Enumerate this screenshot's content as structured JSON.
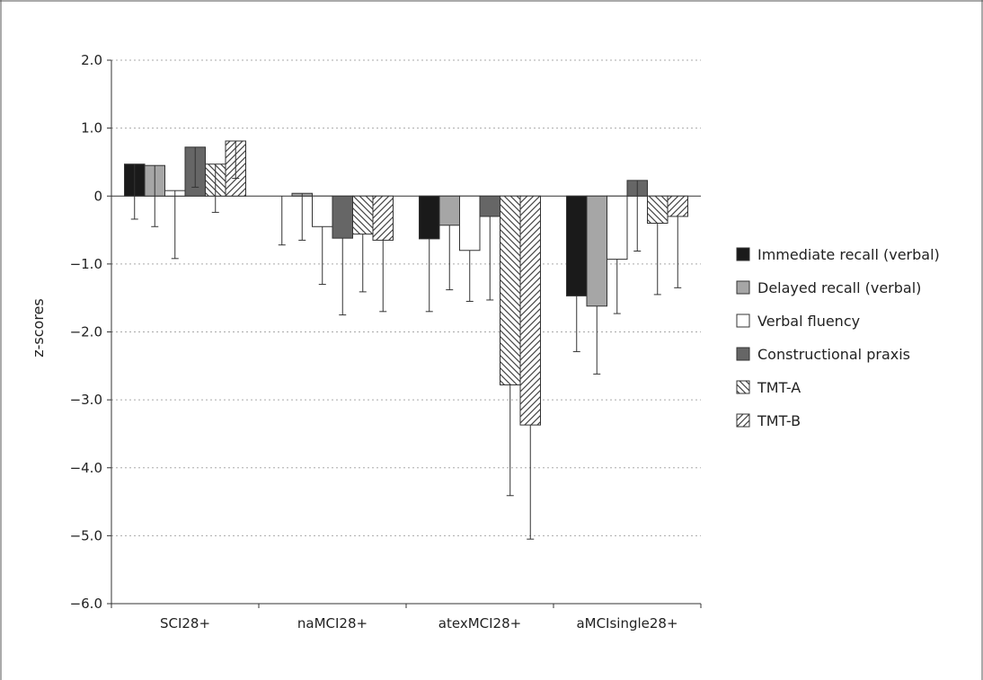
{
  "chart_data": {
    "type": "bar",
    "title": "",
    "xlabel": "",
    "ylabel": "z-scores",
    "ylim": [
      -6,
      2
    ],
    "yticks": [
      2,
      1,
      0,
      -1,
      -2,
      -3,
      -4,
      -5,
      -6
    ],
    "ytick_labels": [
      "2.0",
      "1.0",
      "0",
      "−1.0",
      "−2.0",
      "−3.0",
      "−4.0",
      "−5.0",
      "−6.0"
    ],
    "grid": "horizontal dotted",
    "legend_position": "right",
    "categories": [
      "SCI28+",
      "naMCI28+",
      "atexMCI28+",
      "aMCIsingle28+"
    ],
    "series": [
      {
        "name": "Immediate recall (verbal)",
        "fill": "#1a1a1a",
        "pattern": "solid",
        "values": [
          0.47,
          0.0,
          -0.63,
          -1.47
        ],
        "errors": [
          0.81,
          0.72,
          1.07,
          0.82
        ]
      },
      {
        "name": "Delayed recall (verbal)",
        "fill": "#a6a6a6",
        "pattern": "solid",
        "values": [
          0.45,
          0.04,
          -0.43,
          -1.62
        ],
        "errors": [
          0.9,
          0.69,
          0.95,
          1.0
        ]
      },
      {
        "name": "Verbal fluency",
        "fill": "#ffffff",
        "pattern": "solid",
        "values": [
          0.08,
          -0.45,
          -0.8,
          -0.93
        ],
        "errors": [
          1.0,
          0.85,
          0.75,
          0.8
        ]
      },
      {
        "name": "Constructional praxis",
        "fill": "#666666",
        "pattern": "solid",
        "values": [
          0.72,
          -0.62,
          -0.3,
          0.23
        ],
        "errors": [
          0.59,
          1.13,
          1.23,
          1.04
        ]
      },
      {
        "name": "TMT-A",
        "fill": "#ffffff",
        "pattern": "backslash",
        "values": [
          0.47,
          -0.56,
          -2.78,
          -0.4
        ],
        "errors": [
          0.71,
          0.85,
          1.63,
          1.05
        ]
      },
      {
        "name": "TMT-B",
        "fill": "#ffffff",
        "pattern": "slash",
        "values": [
          0.81,
          -0.65,
          -3.37,
          -0.3
        ],
        "errors": [
          0.55,
          1.05,
          1.68,
          1.05
        ]
      }
    ]
  }
}
